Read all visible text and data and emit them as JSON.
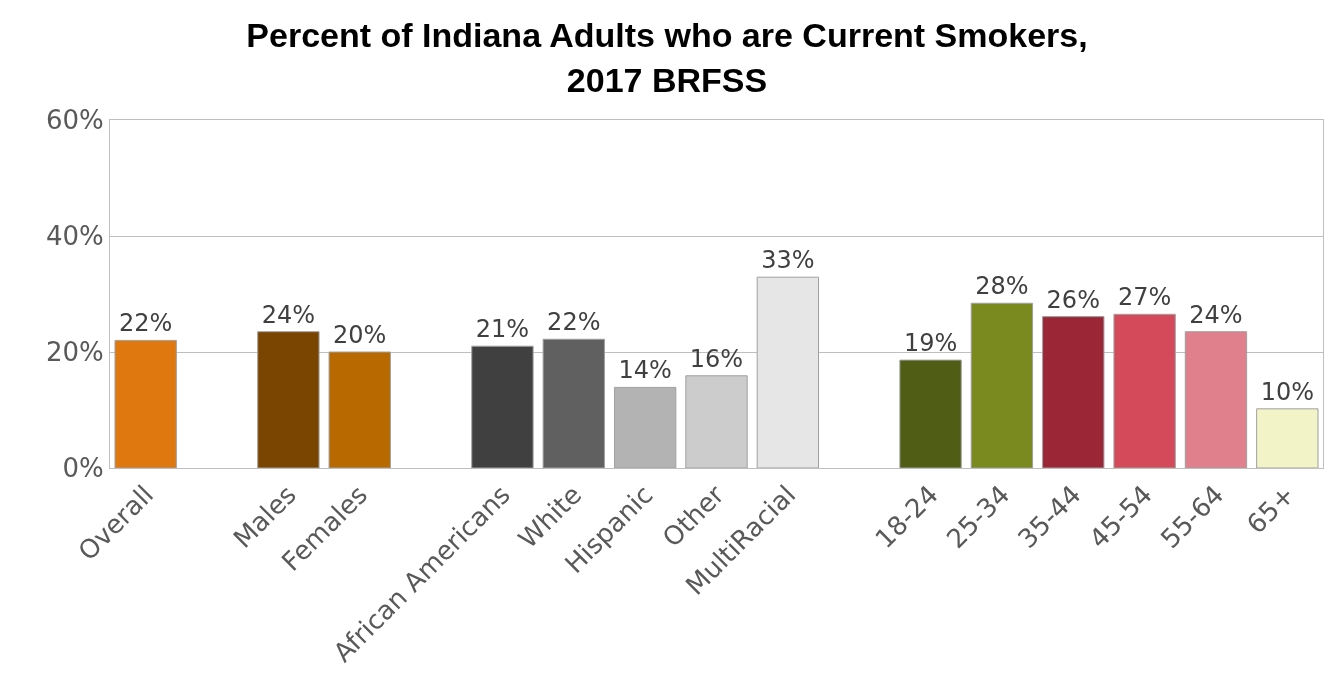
{
  "chart_data": {
    "type": "bar",
    "title": "Percent of Indiana Adults who are Current Smokers,\n2017 BRFSS",
    "categories": [
      "Overall",
      null,
      "Males",
      "Females",
      null,
      "African Americans",
      "White",
      "Hispanic",
      "Other",
      "MultiRacial",
      null,
      "18-24",
      "25-34",
      "35-44",
      "45-54",
      "55-64",
      "65+"
    ],
    "values": [
      22.0,
      null,
      23.5,
      20.0,
      null,
      21.0,
      22.2,
      13.9,
      15.9,
      32.9,
      null,
      18.6,
      28.4,
      26.1,
      26.5,
      23.5,
      10.2
    ],
    "value_labels": [
      "22%",
      null,
      "24%",
      "20%",
      null,
      "21%",
      "22%",
      "14%",
      "16%",
      "33%",
      null,
      "19%",
      "28%",
      "26%",
      "27%",
      "24%",
      "10%"
    ],
    "colors": [
      "#e07810",
      "#ffffff",
      "#7a4500",
      "#b86a00",
      "#ffffff",
      "#404040",
      "#606060",
      "#b3b3b3",
      "#cccccc",
      "#e6e6e6",
      "#ffffff",
      "#4f5e14",
      "#7a8a1e",
      "#9b2736",
      "#d44a5a",
      "#e0808c",
      "#f2f4c8"
    ],
    "ylim": [
      0,
      60
    ],
    "yticks": [
      {
        "value": 0,
        "label": "0%"
      },
      {
        "value": 20,
        "label": "20%"
      },
      {
        "value": 40,
        "label": "40%"
      },
      {
        "value": 60,
        "label": "60%"
      }
    ],
    "grid": "y"
  }
}
